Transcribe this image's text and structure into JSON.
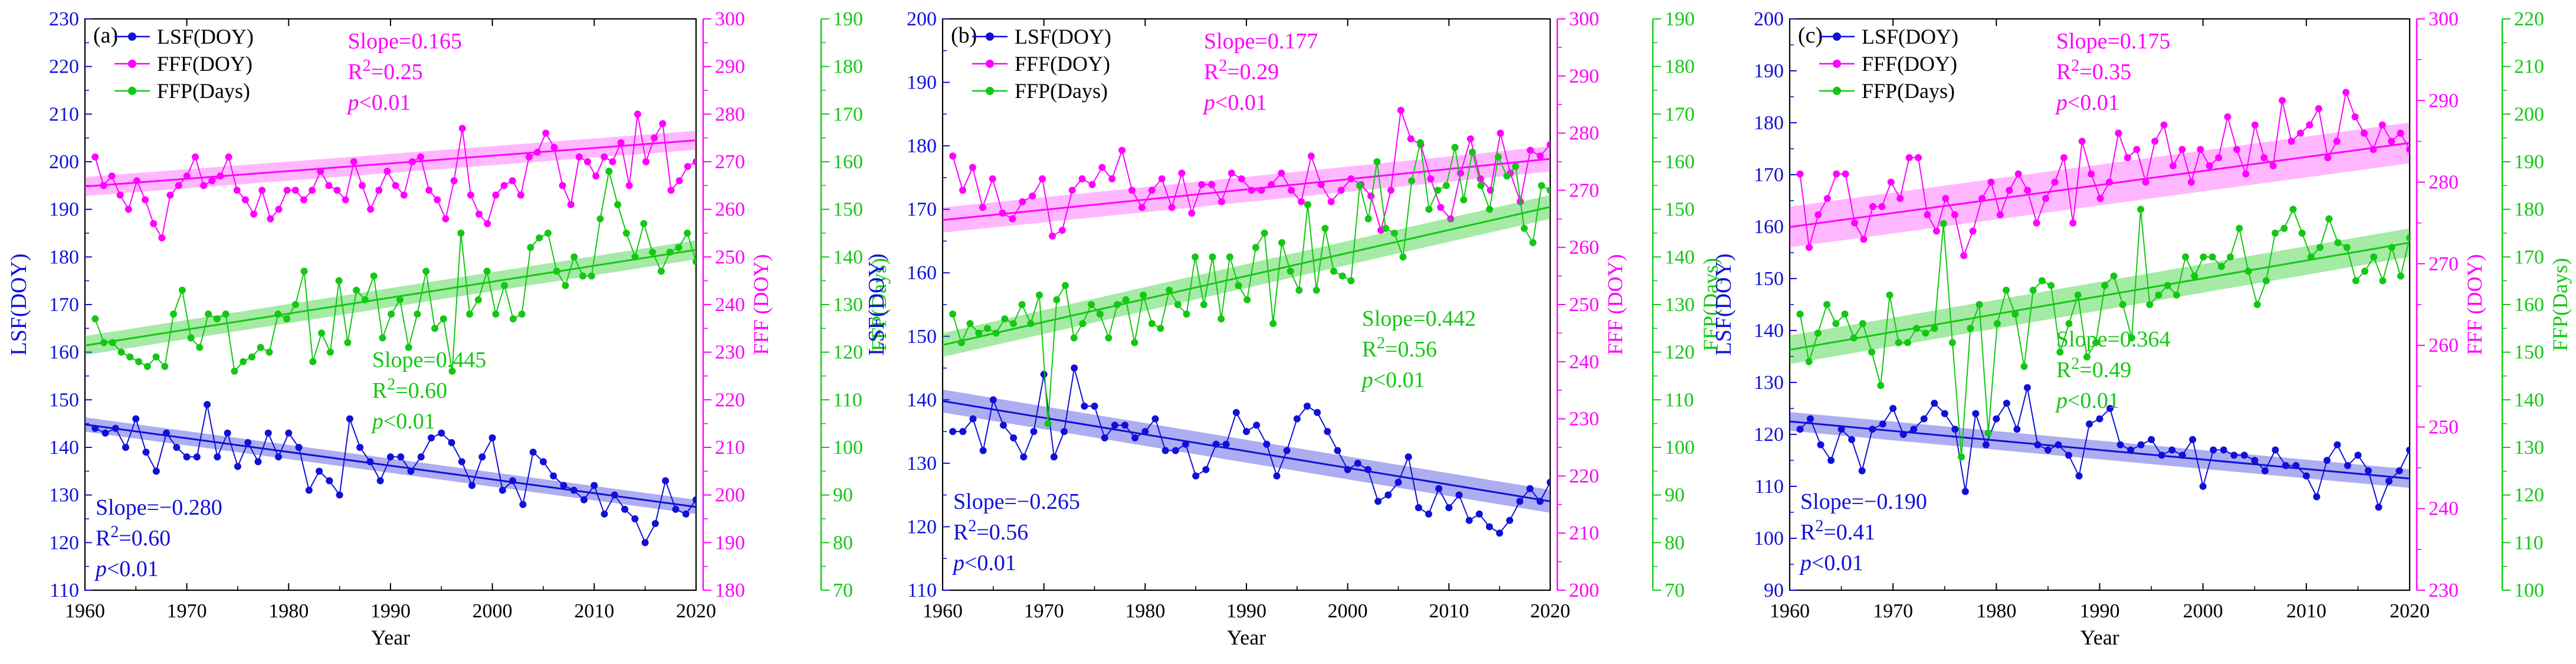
{
  "chart_data": [
    {
      "type": "line",
      "panel_label": "(a)",
      "xlabel": "Year",
      "xlim": [
        1960,
        2020
      ],
      "xticks": [
        1960,
        1970,
        1980,
        1990,
        2000,
        2010,
        2020
      ],
      "axes": {
        "lsf": {
          "label": "LSF(DOY)",
          "ylim": [
            110,
            230
          ],
          "ticks": [
            110,
            120,
            130,
            140,
            150,
            160,
            170,
            180,
            190,
            200,
            210,
            220,
            230
          ],
          "color": "#1010d8"
        },
        "fff": {
          "label": "FFF (DOY)",
          "ylim": [
            180,
            300
          ],
          "ticks": [
            180,
            190,
            200,
            210,
            220,
            230,
            240,
            250,
            260,
            270,
            280,
            290,
            300
          ],
          "color": "#ff00ff"
        },
        "ffp": {
          "label": "FFP(Days)",
          "ylim": [
            70,
            190
          ],
          "ticks": [
            70,
            80,
            90,
            100,
            110,
            120,
            130,
            140,
            150,
            160,
            170,
            180,
            190
          ],
          "color": "#12c812"
        }
      },
      "legend": [
        "LSF(DOY)",
        "FFF(DOY)",
        "FFP(Days)"
      ],
      "annotations": {
        "fff": {
          "slope": "Slope=0.165",
          "r2_prefix": "R",
          "r2_value": "=0.25",
          "p_italic": "p",
          "p_rest": "<0.01"
        },
        "ffp": {
          "slope": "Slope=0.445",
          "r2_prefix": "R",
          "r2_value": "=0.60",
          "p_italic": "p",
          "p_rest": "<0.01"
        },
        "lsf": {
          "slope": "Slope=−0.280",
          "r2_prefix": "R",
          "r2_value": "=0.60",
          "p_italic": "p",
          "p_rest": "<0.01"
        }
      },
      "series": [
        {
          "name": "LSF(DOY)",
          "axis": "lsf",
          "start_year": 1961,
          "trend": [
            144.8,
            127.5
          ],
          "band": 1.5,
          "values": [
            144,
            143,
            144,
            140,
            146,
            139,
            135,
            143,
            140,
            138,
            138,
            149,
            138,
            143,
            136,
            141,
            137,
            143,
            138,
            143,
            140,
            131,
            135,
            133,
            130,
            146,
            140,
            137,
            133,
            138,
            138,
            135,
            138,
            142,
            143,
            141,
            137,
            132,
            138,
            142,
            131,
            133,
            128,
            139,
            137,
            134,
            132,
            131,
            129,
            132,
            126,
            130,
            127,
            125,
            120,
            124,
            133,
            127,
            126,
            129
          ]
        },
        {
          "name": "FFF(DOY)",
          "axis": "fff",
          "start_year": 1961,
          "trend": [
            264.8,
            274.5
          ],
          "band": 2.0,
          "values": [
            271,
            265,
            267,
            263,
            260,
            266,
            262,
            257,
            254,
            263,
            265,
            267,
            271,
            265,
            266,
            267,
            271,
            264,
            262,
            259,
            264,
            258,
            260,
            264,
            264,
            262,
            264,
            268,
            265,
            264,
            262,
            270,
            265,
            260,
            264,
            268,
            265,
            263,
            270,
            271,
            264,
            262,
            258,
            266,
            277,
            263,
            259,
            257,
            263,
            265,
            266,
            263,
            271,
            272,
            276,
            273,
            265,
            261,
            271,
            270,
            267,
            271,
            270,
            274,
            265,
            280,
            270,
            275,
            278,
            264,
            266,
            269,
            270
          ]
        },
        {
          "name": "FFP(Days)",
          "axis": "ffp",
          "start_year": 1961,
          "trend": [
            121.4,
            141.5
          ],
          "band": 2.0,
          "values": [
            127,
            122,
            122,
            120,
            119,
            118,
            117,
            119,
            117,
            128,
            133,
            123,
            121,
            128,
            127,
            128,
            116,
            118,
            119,
            121,
            120,
            128,
            127,
            130,
            137,
            118,
            124,
            120,
            135,
            122,
            133,
            131,
            136,
            123,
            128,
            131,
            121,
            128,
            137,
            125,
            127,
            116,
            145,
            128,
            131,
            137,
            128,
            134,
            127,
            128,
            142,
            144,
            145,
            137,
            134,
            140,
            136,
            136,
            148,
            158,
            151,
            145,
            140,
            147,
            141,
            137,
            141,
            142,
            145,
            139
          ]
        }
      ]
    },
    {
      "type": "line",
      "panel_label": "(b)",
      "xlabel": "Year",
      "xlim": [
        1960,
        2020
      ],
      "xticks": [
        1960,
        1970,
        1980,
        1990,
        2000,
        2010,
        2020
      ],
      "axes": {
        "lsf": {
          "label": "LSF(DOY)",
          "ylim": [
            110,
            200
          ],
          "ticks": [
            110,
            120,
            130,
            140,
            150,
            160,
            170,
            180,
            190,
            200
          ],
          "color": "#1010d8"
        },
        "fff": {
          "label": "FFF (DOY)",
          "ylim": [
            200,
            300
          ],
          "ticks": [
            200,
            210,
            220,
            230,
            240,
            250,
            260,
            270,
            280,
            290,
            300
          ],
          "color": "#ff00ff"
        },
        "ffp": {
          "label": "FFP(Days)",
          "ylim": [
            70,
            190
          ],
          "ticks": [
            70,
            80,
            90,
            100,
            110,
            120,
            130,
            140,
            150,
            160,
            170,
            180,
            190
          ],
          "color": "#12c812"
        }
      },
      "legend": [
        "LSF(DOY)",
        "FFF(DOY)",
        "FFP(Days)"
      ],
      "annotations": {
        "fff": {
          "slope": "Slope=0.177",
          "r2_prefix": "R",
          "r2_value": "=0.29",
          "p_italic": "p",
          "p_rest": "<0.01"
        },
        "ffp": {
          "slope": "Slope=0.442",
          "r2_prefix": "R",
          "r2_value": "=0.56",
          "p_italic": "p",
          "p_rest": "<0.01"
        },
        "lsf": {
          "slope": "Slope=−0.265",
          "r2_prefix": "R",
          "r2_value": "=0.56",
          "p_italic": "p",
          "p_rest": "<0.01"
        }
      },
      "series": [
        {
          "name": "LSF(DOY)",
          "axis": "lsf",
          "start_year": 1961,
          "trend": [
            139.8,
            124.0
          ],
          "band": 1.8,
          "values": [
            135,
            135,
            137,
            132,
            140,
            136,
            134,
            131,
            135,
            144,
            131,
            135,
            145,
            139,
            139,
            134,
            136,
            136,
            134,
            135,
            137,
            132,
            132,
            133,
            128,
            129,
            133,
            133,
            138,
            135,
            136,
            133,
            128,
            132,
            137,
            139,
            138,
            135,
            132,
            129,
            130,
            129,
            124,
            125,
            127,
            131,
            123,
            122,
            126,
            123,
            125,
            121,
            122,
            120,
            119,
            121,
            124,
            126,
            124,
            127
          ]
        },
        {
          "name": "FFF(DOY)",
          "axis": "fff",
          "start_year": 1961,
          "trend": [
            264.8,
            275.5
          ],
          "band": 2.2,
          "values": [
            276,
            270,
            274,
            267,
            272,
            266,
            265,
            268,
            269,
            272,
            262,
            263,
            270,
            272,
            271,
            274,
            272,
            277,
            270,
            267,
            270,
            272,
            267,
            273,
            266,
            271,
            271,
            268,
            273,
            272,
            270,
            270,
            271,
            273,
            270,
            268,
            276,
            271,
            268,
            270,
            272,
            271,
            269,
            263,
            270,
            284,
            279,
            278,
            272,
            267,
            265,
            273,
            279,
            272,
            270,
            280,
            273,
            268,
            277,
            276,
            278
          ]
        },
        {
          "name": "FFP(Days)",
          "axis": "ffp",
          "start_year": 1961,
          "trend": [
            121.5,
            150.5
          ],
          "band": 2.5,
          "values": [
            128,
            122,
            126,
            124,
            125,
            124,
            127,
            126,
            130,
            126,
            132,
            105,
            131,
            134,
            123,
            126,
            130,
            128,
            123,
            130,
            131,
            122,
            132,
            126,
            125,
            133,
            130,
            128,
            140,
            130,
            140,
            127,
            140,
            134,
            131,
            142,
            145,
            126,
            143,
            137,
            133,
            151,
            133,
            146,
            137,
            136,
            135,
            155,
            148,
            160,
            146,
            145,
            140,
            156,
            164,
            150,
            154,
            155,
            163,
            152,
            162,
            155,
            150,
            161,
            157,
            159,
            146,
            143,
            155,
            154
          ]
        }
      ]
    },
    {
      "type": "line",
      "panel_label": "(c)",
      "xlabel": "Year",
      "xlim": [
        1960,
        2020
      ],
      "xticks": [
        1960,
        1970,
        1980,
        1990,
        2000,
        2010,
        2020
      ],
      "axes": {
        "lsf": {
          "label": "LSF(DOY)",
          "ylim": [
            90,
            200
          ],
          "ticks": [
            90,
            100,
            110,
            120,
            130,
            140,
            150,
            160,
            170,
            180,
            190,
            200
          ],
          "color": "#1010d8"
        },
        "fff": {
          "label": "FFF (DOY)",
          "ylim": [
            230,
            300
          ],
          "ticks": [
            230,
            240,
            250,
            260,
            270,
            280,
            290,
            300
          ],
          "color": "#ff00ff"
        },
        "ffp": {
          "label": "FFP(Days)",
          "ylim": [
            100,
            220
          ],
          "ticks": [
            100,
            110,
            120,
            130,
            140,
            150,
            160,
            170,
            180,
            190,
            200,
            210,
            220
          ],
          "color": "#12c812"
        }
      },
      "legend": [
        "LSF(DOY)",
        "FFF(DOY)",
        "FFP(Days)"
      ],
      "annotations": {
        "fff": {
          "slope": "Slope=0.175",
          "r2_prefix": "R",
          "r2_value": "=0.35",
          "p_italic": "p",
          "p_rest": "<0.01"
        },
        "ffp": {
          "slope": "Slope=0.364",
          "r2_prefix": "R",
          "r2_value": "=0.49",
          "p_italic": "p",
          "p_rest": "<0.01"
        },
        "lsf": {
          "slope": "Slope=−0.190",
          "r2_prefix": "R",
          "r2_value": "=0.41",
          "p_italic": "p",
          "p_rest": "<0.01"
        }
      },
      "series": [
        {
          "name": "LSF(DOY)",
          "axis": "lsf",
          "start_year": 1961,
          "trend": [
            122.5,
            111.5
          ],
          "band": 1.8,
          "values": [
            121,
            123,
            118,
            115,
            121,
            119,
            113,
            121,
            122,
            125,
            120,
            121,
            123,
            126,
            124,
            121,
            109,
            124,
            118,
            123,
            126,
            121,
            129,
            118,
            117,
            118,
            116,
            112,
            122,
            123,
            125,
            118,
            117,
            118,
            119,
            116,
            117,
            116,
            119,
            110,
            117,
            117,
            116,
            116,
            115,
            113,
            117,
            114,
            114,
            112,
            108,
            115,
            118,
            114,
            116,
            113,
            106,
            111,
            113,
            117
          ]
        },
        {
          "name": "FFF(DOY)",
          "axis": "fff",
          "start_year": 1961,
          "trend": [
            274.5,
            284.8
          ],
          "band": 2.5,
          "values": [
            281,
            272,
            276,
            278,
            281,
            281,
            275,
            273,
            277,
            277,
            280,
            278,
            283,
            283,
            276,
            274,
            278,
            276,
            271,
            274,
            278,
            280,
            276,
            279,
            281,
            279,
            275,
            278,
            280,
            283,
            275,
            285,
            281,
            278,
            280,
            286,
            283,
            284,
            280,
            285,
            287,
            282,
            284,
            280,
            284,
            282,
            283,
            288,
            284,
            281,
            287,
            283,
            282,
            290,
            285,
            286,
            287,
            289,
            283,
            285,
            291,
            288,
            286,
            284,
            287,
            285,
            286,
            284
          ]
        },
        {
          "name": "FFP(Days)",
          "axis": "ffp",
          "start_year": 1961,
          "trend": [
            150.5,
            173.0
          ],
          "band": 3.0,
          "values": [
            158,
            148,
            154,
            160,
            156,
            158,
            153,
            156,
            150,
            143,
            162,
            152,
            152,
            155,
            154,
            155,
            177,
            152,
            128,
            155,
            160,
            133,
            156,
            163,
            158,
            147,
            163,
            165,
            164,
            150,
            156,
            162,
            149,
            152,
            164,
            166,
            160,
            153,
            180,
            160,
            162,
            164,
            162,
            170,
            166,
            170,
            170,
            168,
            170,
            176,
            167,
            160,
            165,
            175,
            176,
            180,
            175,
            170,
            172,
            178,
            173,
            172,
            165,
            167,
            170,
            165,
            172,
            166,
            174
          ]
        }
      ]
    }
  ]
}
